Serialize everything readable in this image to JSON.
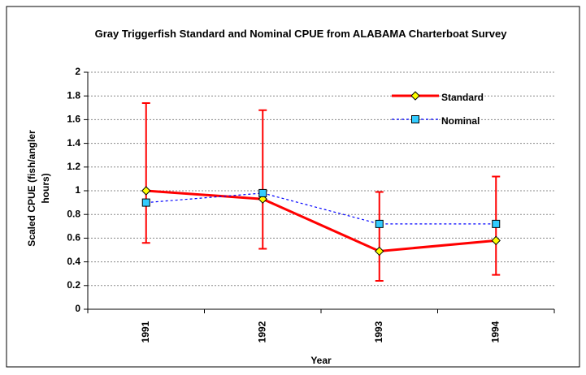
{
  "chart_data": {
    "type": "line",
    "title": "Gray Triggerfish Standard and Nominal CPUE from ALABAMA Charterboat Survey",
    "x_label": "Year",
    "y_label": "Scaled CPUE (fish/angler hours)",
    "categories": [
      "1991",
      "1992",
      "1993",
      "1994"
    ],
    "series": [
      {
        "name": "Standard",
        "color": "#ff0000",
        "marker": "diamond",
        "marker_color": "#ffff00",
        "values": [
          1.0,
          0.93,
          0.49,
          0.58
        ],
        "lower": [
          0.56,
          0.51,
          0.24,
          0.29
        ],
        "upper": [
          1.74,
          1.68,
          0.99,
          1.12
        ]
      },
      {
        "name": "Nominal",
        "color": "#0000ff",
        "marker": "square",
        "marker_color": "#33ccff",
        "values": [
          0.9,
          0.98,
          0.72,
          0.72
        ]
      }
    ],
    "ylim": [
      0,
      2
    ],
    "yticks": [
      0,
      0.2,
      0.4,
      0.6,
      0.8,
      1,
      1.2,
      1.4,
      1.6,
      1.8,
      2
    ],
    "grid": true,
    "legend": "upper right"
  }
}
